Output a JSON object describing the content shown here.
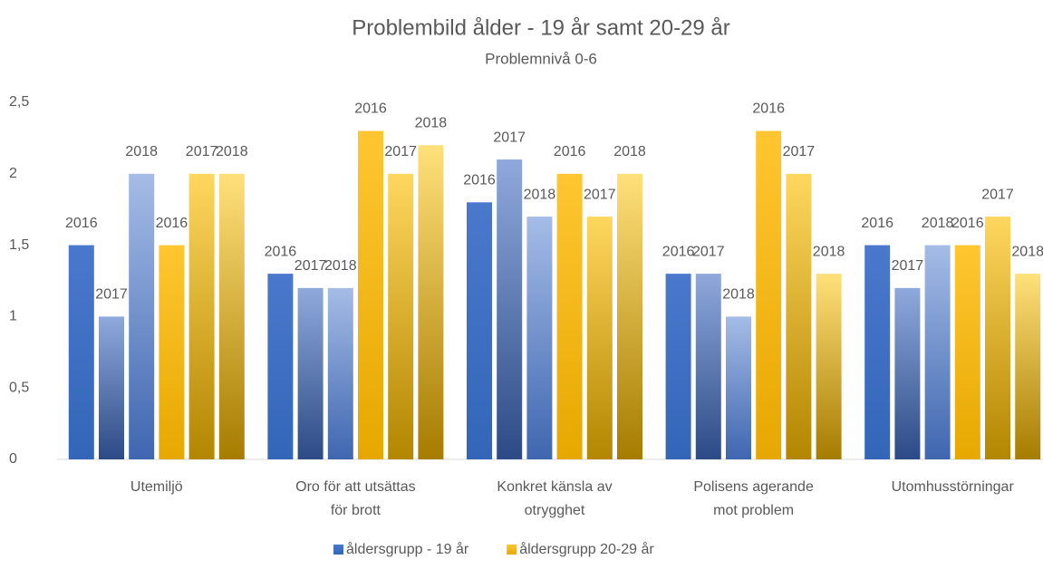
{
  "chart_data": {
    "type": "bar",
    "title": "Problembild ålder - 19 år samt 20-29 år",
    "subtitle": "Problemnivå 0-6",
    "categories": [
      [
        "Utemiljö"
      ],
      [
        "Oro för att utsättas",
        "för brott"
      ],
      [
        "Konkret känsla av",
        "otrygghet"
      ],
      [
        "Polisens agerande",
        "mot problem"
      ],
      [
        "Utomhusstörningar"
      ]
    ],
    "legend": [
      {
        "name": "åldersgrupp - 19 år",
        "color": "#4472c4"
      },
      {
        "name": "åldersgrupp 20-29 år",
        "color": "#ffc000"
      }
    ],
    "series": [
      {
        "label": "2016",
        "legend": 0,
        "color": [
          "#4a78cc",
          "#3366b8"
        ],
        "values": [
          1.5,
          1.3,
          1.8,
          1.3,
          1.5
        ]
      },
      {
        "label": "2017",
        "legend": 0,
        "color": [
          "#8fa9dc",
          "#2c4a85"
        ],
        "values": [
          1.0,
          1.2,
          2.1,
          1.3,
          1.2
        ]
      },
      {
        "label": "2018",
        "legend": 0,
        "color": [
          "#a5bce6",
          "#3f66b0"
        ],
        "values": [
          2.0,
          1.2,
          1.7,
          1.0,
          1.5
        ]
      },
      {
        "label": "2016",
        "legend": 1,
        "color": [
          "#ffc631",
          "#e6a800"
        ],
        "values": [
          1.5,
          2.3,
          2.0,
          2.3,
          1.5
        ]
      },
      {
        "label": "2017",
        "legend": 1,
        "color": [
          "#ffd75e",
          "#b38600"
        ],
        "values": [
          2.0,
          2.0,
          1.7,
          2.0,
          1.7
        ]
      },
      {
        "label": "2018",
        "legend": 1,
        "color": [
          "#ffe07a",
          "#a67c00"
        ],
        "values": [
          2.0,
          2.2,
          2.0,
          1.3,
          1.3
        ]
      }
    ],
    "ylim": [
      0,
      2.5
    ],
    "yticks": [
      0,
      {
        "value": 0.5,
        "label": "0,5"
      },
      1,
      {
        "value": 1.5,
        "label": "1,5"
      },
      2,
      {
        "value": 2.5,
        "label": "2,5"
      }
    ],
    "grid": false
  }
}
